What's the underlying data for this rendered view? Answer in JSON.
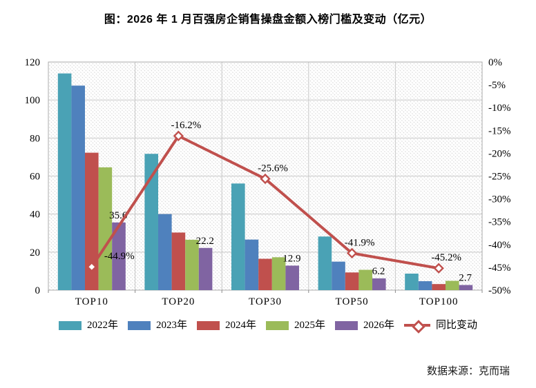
{
  "title": "图：2026 年 1 月百强房企销售操盘金额入榜门槛及变动（亿元）",
  "source": "数据来源：克而瑞",
  "chart_data": {
    "type": "bar",
    "subtype": "grouped-bars-with-line-overlay",
    "title": "图：2026 年 1 月百强房企销售操盘金额入榜门槛及变动（亿元）",
    "categories": [
      "TOP10",
      "TOP20",
      "TOP30",
      "TOP50",
      "TOP100"
    ],
    "series": [
      {
        "name": "2022年",
        "color": "#4AA2B5",
        "values": [
          114.0,
          71.7,
          56.1,
          28.2,
          8.7
        ]
      },
      {
        "name": "2023年",
        "color": "#4F81BD",
        "values": [
          107.6,
          40.0,
          26.6,
          15.0,
          4.7
        ]
      },
      {
        "name": "2024年",
        "color": "#C0504D",
        "values": [
          72.3,
          30.3,
          16.5,
          9.3,
          3.2
        ]
      },
      {
        "name": "2025年",
        "color": "#9BBB59",
        "values": [
          64.6,
          26.5,
          17.3,
          10.7,
          4.9
        ]
      },
      {
        "name": "2026年",
        "color": "#8064A2",
        "values": [
          35.6,
          22.2,
          12.9,
          6.2,
          2.7
        ],
        "data_labels": [
          "35.6",
          "22.2",
          "12.9",
          "6.2",
          "2.7"
        ]
      }
    ],
    "line_series": {
      "name": "同比变动",
      "color": "#C0504D",
      "axis": "right",
      "values": [
        -44.9,
        -16.2,
        -25.6,
        -41.9,
        -45.2
      ],
      "data_labels": [
        "-44.9%",
        "-16.2%",
        "-25.6%",
        "-41.9%",
        "-45.2%"
      ],
      "marker": "diamond-white-fill"
    },
    "left_axis": {
      "min": 0,
      "max": 120,
      "step": 20,
      "ticks_bottom_to_top": [
        "0",
        "20",
        "40",
        "60",
        "80",
        "100",
        "120"
      ]
    },
    "right_axis": {
      "min": -50,
      "max": 0,
      "step": 5,
      "ticks_top_to_bottom": [
        "0%",
        "-5%",
        "-10%",
        "-15%",
        "-20%",
        "-25%",
        "-30%",
        "-35%",
        "-40%",
        "-45%",
        "-50%"
      ]
    },
    "grid": true,
    "plot_background": "diagonal-hatch",
    "legend_position": "bottom",
    "colors": {
      "grid_line": "#C8C8C8",
      "plot_border": "#ABABAB",
      "hatch": "#DBDBDB",
      "axis_text": "#000000"
    }
  }
}
